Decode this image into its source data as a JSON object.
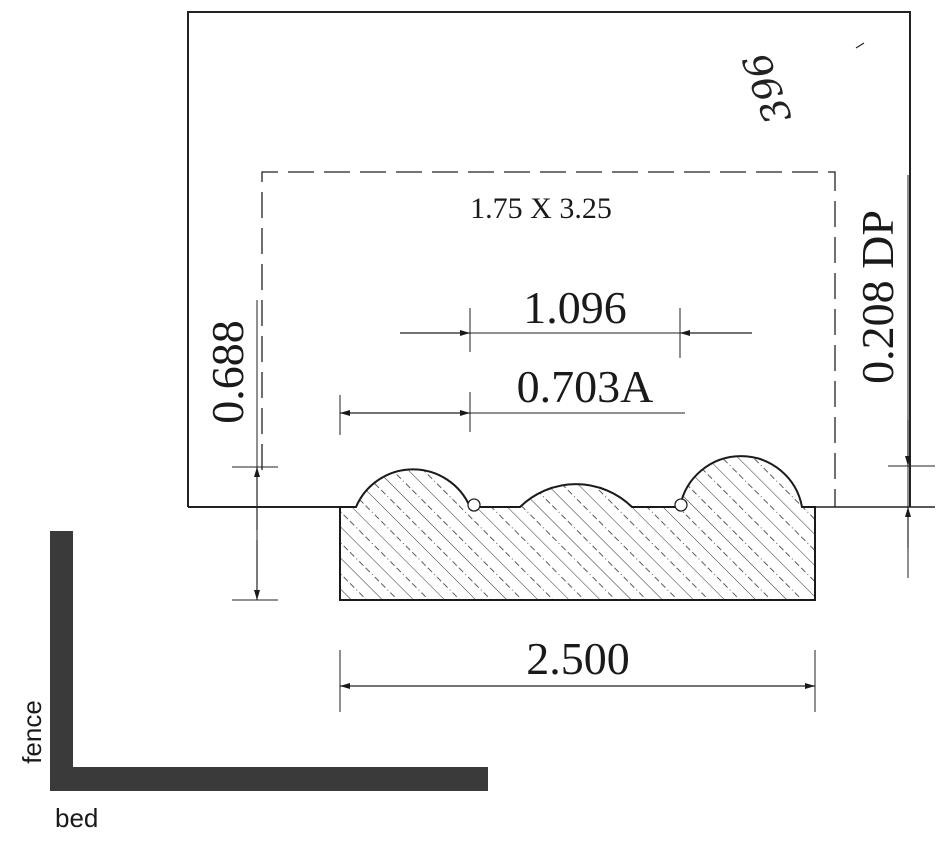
{
  "annotations": {
    "handwritten_note": "396",
    "stock_size": "1.75 X 3.25",
    "depth": "0.208 DP",
    "height": "0.688",
    "bead_pitch": "1.096",
    "bead_offset": "0.703A",
    "overall_width": "2.500"
  },
  "legend": {
    "fence_label": "fence",
    "bed_label": "bed"
  }
}
